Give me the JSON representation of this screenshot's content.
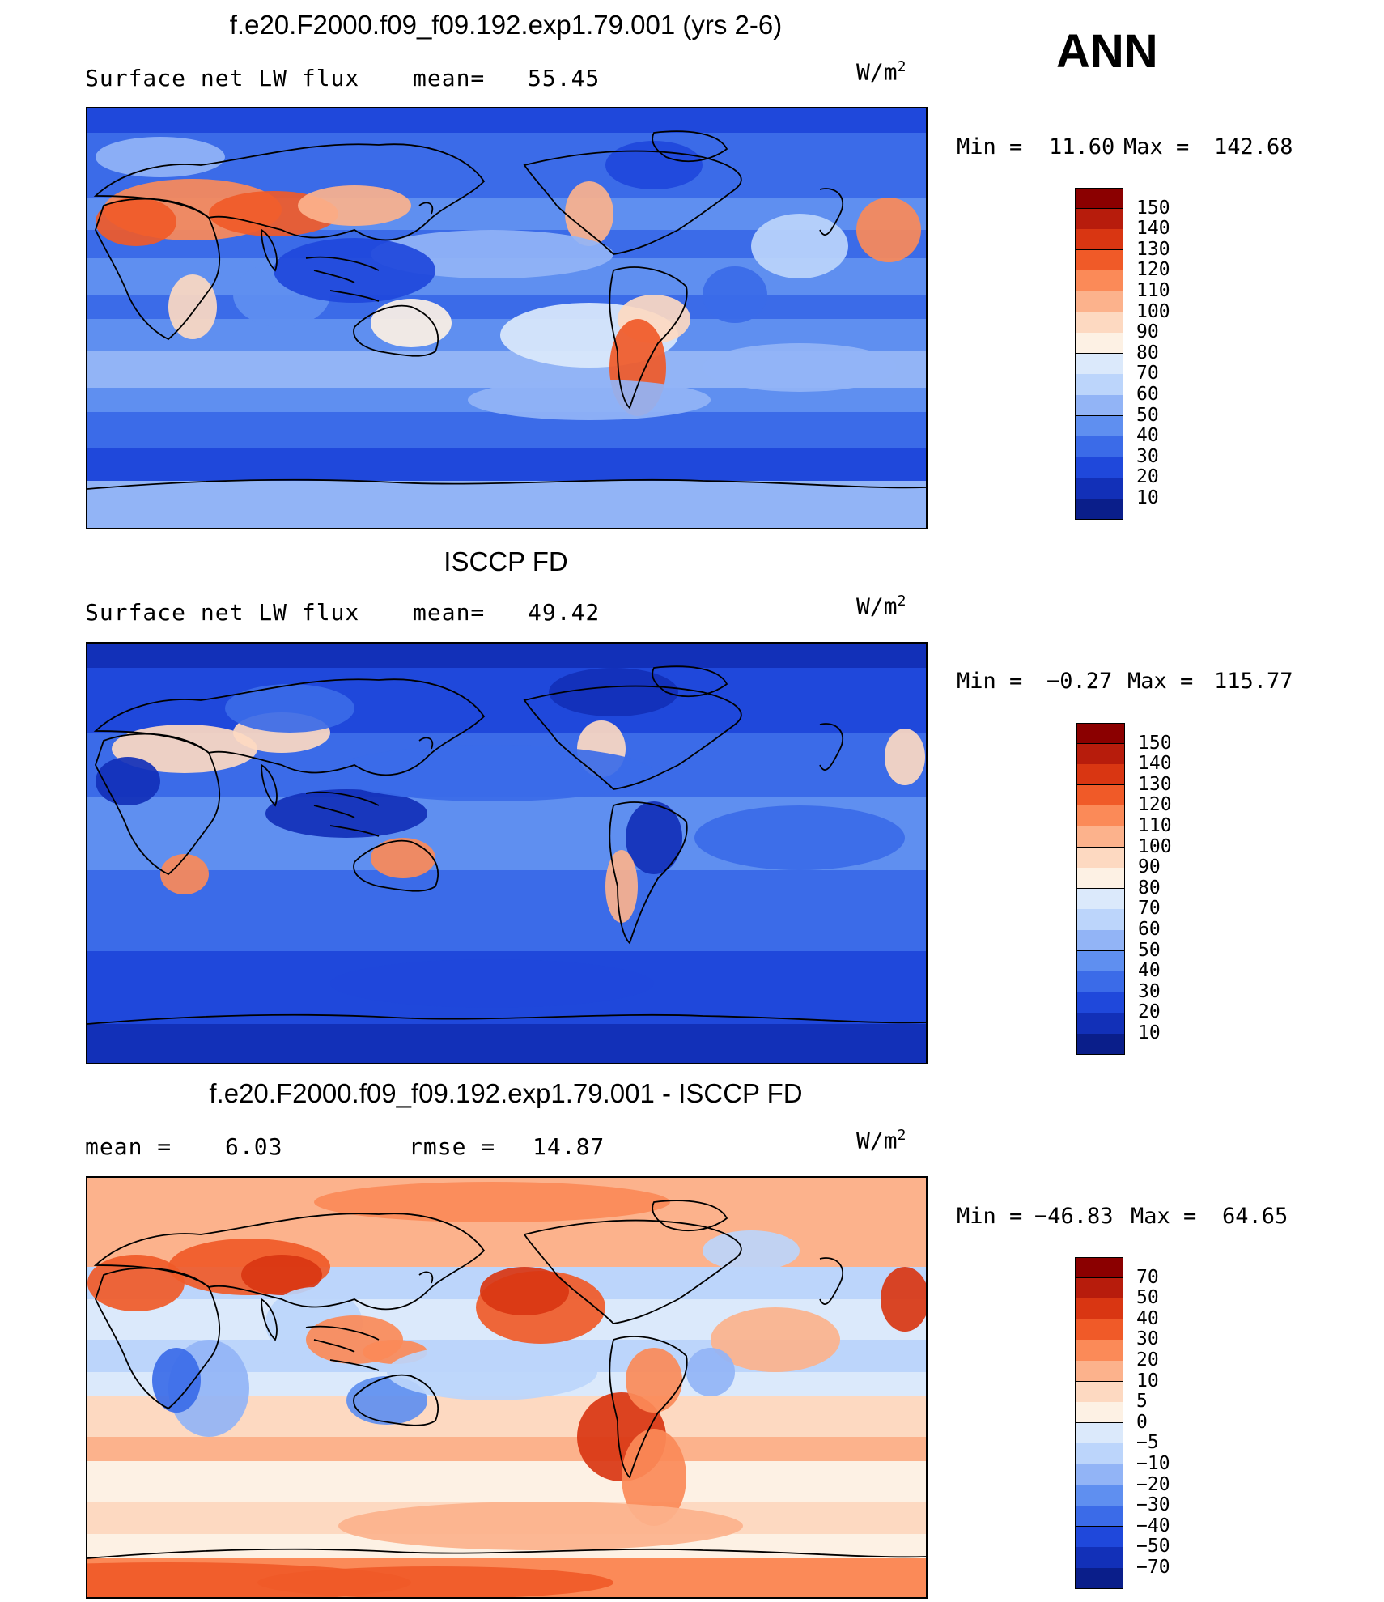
{
  "season": "ANN",
  "units_base": "W/m",
  "units_sup": "2",
  "panels": [
    {
      "title": "f.e20.F2000.f09_f09.192.exp1.79.001 (yrs 2-6)",
      "left_label": "Surface net LW flux",
      "stat_label": "mean=",
      "stat_value": "55.45",
      "min_label": "Min =",
      "min_value": "11.60",
      "max_label": "Max =",
      "max_value": "142.68",
      "legend_labels": [
        "150",
        "140",
        "130",
        "120",
        "110",
        "100",
        "90",
        "80",
        "70",
        "60",
        "50",
        "40",
        "30",
        "20",
        "10"
      ],
      "legend_colors": [
        "#8b0000",
        "#b71c0c",
        "#d93612",
        "#f05a28",
        "#fb8a58",
        "#fcb28c",
        "#fdd9c1",
        "#fdf1e4",
        "#dbe9fb",
        "#bcd5fb",
        "#92b4f6",
        "#5f8ff0",
        "#3b6be8",
        "#1f48db",
        "#1230b8",
        "#0a1e8a"
      ],
      "field": "model"
    },
    {
      "title": "ISCCP FD",
      "left_label": "Surface net LW flux",
      "stat_label": "mean=",
      "stat_value": "49.42",
      "min_label": "Min =",
      "min_value": "−0.27",
      "max_label": "Max =",
      "max_value": "115.77",
      "legend_labels": [
        "150",
        "140",
        "130",
        "120",
        "110",
        "100",
        "90",
        "80",
        "70",
        "60",
        "50",
        "40",
        "30",
        "20",
        "10"
      ],
      "legend_colors": [
        "#8b0000",
        "#b71c0c",
        "#d93612",
        "#f05a28",
        "#fb8a58",
        "#fcb28c",
        "#fdd9c1",
        "#fdf1e4",
        "#dbe9fb",
        "#bcd5fb",
        "#92b4f6",
        "#5f8ff0",
        "#3b6be8",
        "#1f48db",
        "#1230b8",
        "#0a1e8a"
      ],
      "field": "obs"
    },
    {
      "title": "f.e20.F2000.f09_f09.192.exp1.79.001 - ISCCP FD",
      "left_label": "mean =",
      "left_value": "6.03",
      "stat_label": "rmse =",
      "stat_value": "14.87",
      "min_label": "Min =",
      "min_value": "−46.83",
      "max_label": "Max =",
      "max_value": "64.65",
      "legend_labels": [
        "70",
        "50",
        "40",
        "30",
        "20",
        "10",
        "5",
        "0",
        "−5",
        "−10",
        "−20",
        "−30",
        "−40",
        "−50",
        "−70"
      ],
      "legend_colors": [
        "#8b0000",
        "#b71c0c",
        "#d93612",
        "#f05a28",
        "#fb8a58",
        "#fcb28c",
        "#fdd9c1",
        "#fdf1e4",
        "#dbe9fb",
        "#bcd5fb",
        "#92b4f6",
        "#5f8ff0",
        "#3b6be8",
        "#1f48db",
        "#1230b8",
        "#0a1e8a"
      ],
      "field": "diff"
    }
  ]
}
